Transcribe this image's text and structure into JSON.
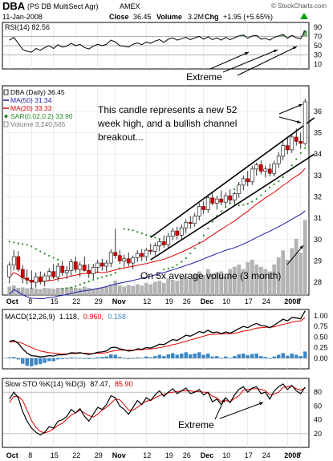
{
  "header": {
    "symbol": "DBA",
    "name": "(PS DB MultiSect  Agr)",
    "exchange": "AMEX",
    "date": "11-Jan-2008",
    "close_label": "Close",
    "close_value": "36.45",
    "volume_label": "Volume",
    "volume_value": "3.2M",
    "chg_label": "Chg",
    "chg_value": "+1.95 (+5.65%)",
    "chg_arrow": "up-arrow-icon",
    "brand": "© StockCharts.com"
  },
  "colors": {
    "up": "#00a000",
    "down": "#d00000",
    "ma50": "#1e1eaa",
    "ma20": "#e00000",
    "sar": "#228822",
    "volume": "#b4b4b4",
    "rsi_fill": "#5aa05a",
    "macd_hist": "#3a86c6",
    "signal": "#e00000",
    "price_axis": "#000000"
  },
  "rsi_panel": {
    "legend": "RSI(14) 82.56",
    "ticks": [
      "90",
      "70",
      "50",
      "30",
      "10"
    ],
    "annotation": "Extreme"
  },
  "price_panel": {
    "legend": [
      {
        "text": "DBA (Daily) 36.45",
        "color": "#000000",
        "marker": "box"
      },
      {
        "text": "MA(50) 31.34",
        "color": "#1e1eaa",
        "marker": "line"
      },
      {
        "text": "MA(20) 33.33",
        "color": "#e00000",
        "marker": "line"
      },
      {
        "text": "SAR(0.02,0.2) 33.90",
        "color": "#228822",
        "marker": "dot"
      },
      {
        "text": "Volume 3,240,565",
        "color": "#777777",
        "marker": "box"
      }
    ],
    "annotation_top_lines": [
      "This candle represents a new 52",
      "week high, and a bullish channel",
      "breakout..."
    ],
    "annotation_bottom": "On 5x average volume (3 month)"
  },
  "macd_panel": {
    "legend_prefix": "MACD(12,26,9)",
    "macd_value": "1.118,",
    "signal_value": "0.960,",
    "hist_value": "0.158",
    "ticks": [
      "1.00",
      "0.75",
      "0.50",
      "0.25",
      "0.00"
    ]
  },
  "sto_panel": {
    "legend_prefix": "Slow STO %K(14) %D(3)",
    "k_value": "87.47,",
    "d_value": "85.90",
    "ticks": [
      "80",
      "60",
      "40",
      "20"
    ],
    "annotation": "Extreme"
  },
  "chart_data": {
    "type": "candlestick",
    "title": "DBA (PS DB MultiSect Agr) AMEX",
    "x_labels": [
      "Oct",
      "8",
      "15",
      "22",
      "29",
      "Nov",
      "12",
      "19",
      "26",
      "Dec",
      "10",
      "17",
      "24",
      "2008",
      "7"
    ],
    "x_label_sessions": [
      0,
      5,
      10,
      15,
      20,
      24,
      31,
      36,
      40,
      44,
      49,
      54,
      58,
      63,
      66
    ],
    "price_axis": {
      "ticks": [
        28,
        29,
        30,
        31,
        32,
        33,
        34,
        35,
        36
      ],
      "ylim": [
        27.4,
        37.2
      ]
    },
    "candles": [
      {
        "o": 28.25,
        "h": 28.95,
        "l": 27.95,
        "c": 28.8
      },
      {
        "o": 28.8,
        "h": 29.5,
        "l": 28.55,
        "c": 29.2
      },
      {
        "o": 29.2,
        "h": 29.45,
        "l": 28.5,
        "c": 28.6
      },
      {
        "o": 28.6,
        "h": 28.8,
        "l": 27.95,
        "c": 28.2
      },
      {
        "o": 28.2,
        "h": 28.6,
        "l": 27.9,
        "c": 28.1
      },
      {
        "o": 28.1,
        "h": 28.55,
        "l": 27.7,
        "c": 28.0
      },
      {
        "o": 28.0,
        "h": 28.45,
        "l": 27.75,
        "c": 28.25
      },
      {
        "o": 28.25,
        "h": 28.5,
        "l": 27.9,
        "c": 28.05
      },
      {
        "o": 28.05,
        "h": 28.45,
        "l": 27.8,
        "c": 28.3
      },
      {
        "o": 28.3,
        "h": 28.65,
        "l": 28.05,
        "c": 28.5
      },
      {
        "o": 28.5,
        "h": 28.85,
        "l": 28.15,
        "c": 28.25
      },
      {
        "o": 28.25,
        "h": 28.9,
        "l": 28.05,
        "c": 28.75
      },
      {
        "o": 28.75,
        "h": 29.0,
        "l": 28.3,
        "c": 28.45
      },
      {
        "o": 28.45,
        "h": 28.75,
        "l": 28.15,
        "c": 28.55
      },
      {
        "o": 28.55,
        "h": 29.1,
        "l": 28.3,
        "c": 28.95
      },
      {
        "o": 28.95,
        "h": 29.2,
        "l": 28.45,
        "c": 28.6
      },
      {
        "o": 28.6,
        "h": 28.95,
        "l": 28.25,
        "c": 28.8
      },
      {
        "o": 28.8,
        "h": 29.2,
        "l": 28.5,
        "c": 28.55
      },
      {
        "o": 28.55,
        "h": 28.85,
        "l": 28.2,
        "c": 28.4
      },
      {
        "o": 28.4,
        "h": 28.85,
        "l": 28.15,
        "c": 28.7
      },
      {
        "o": 28.7,
        "h": 29.05,
        "l": 28.45,
        "c": 28.9
      },
      {
        "o": 28.9,
        "h": 29.1,
        "l": 28.55,
        "c": 28.75
      },
      {
        "o": 28.75,
        "h": 29.05,
        "l": 28.5,
        "c": 28.9
      },
      {
        "o": 28.9,
        "h": 29.55,
        "l": 28.7,
        "c": 29.4
      },
      {
        "o": 29.4,
        "h": 30.5,
        "l": 29.1,
        "c": 29.25
      },
      {
        "o": 29.25,
        "h": 29.5,
        "l": 28.85,
        "c": 29.0
      },
      {
        "o": 29.0,
        "h": 29.3,
        "l": 28.7,
        "c": 29.1
      },
      {
        "o": 29.1,
        "h": 29.4,
        "l": 28.75,
        "c": 28.9
      },
      {
        "o": 28.9,
        "h": 29.25,
        "l": 28.6,
        "c": 29.15
      },
      {
        "o": 29.15,
        "h": 29.5,
        "l": 28.95,
        "c": 29.35
      },
      {
        "o": 29.35,
        "h": 29.55,
        "l": 29.0,
        "c": 29.2
      },
      {
        "o": 29.2,
        "h": 29.6,
        "l": 29.0,
        "c": 29.5
      },
      {
        "o": 29.5,
        "h": 29.8,
        "l": 29.3,
        "c": 29.45
      },
      {
        "o": 29.45,
        "h": 29.85,
        "l": 29.25,
        "c": 29.7
      },
      {
        "o": 29.7,
        "h": 30.0,
        "l": 29.45,
        "c": 29.9
      },
      {
        "o": 29.9,
        "h": 30.2,
        "l": 29.6,
        "c": 29.75
      },
      {
        "o": 29.75,
        "h": 30.3,
        "l": 29.6,
        "c": 30.15
      },
      {
        "o": 30.15,
        "h": 30.55,
        "l": 29.95,
        "c": 30.4
      },
      {
        "o": 30.4,
        "h": 30.6,
        "l": 30.0,
        "c": 30.2
      },
      {
        "o": 30.2,
        "h": 30.7,
        "l": 30.0,
        "c": 30.55
      },
      {
        "o": 30.55,
        "h": 30.95,
        "l": 30.3,
        "c": 30.8
      },
      {
        "o": 30.8,
        "h": 31.1,
        "l": 30.5,
        "c": 30.75
      },
      {
        "o": 30.75,
        "h": 31.25,
        "l": 30.6,
        "c": 31.1
      },
      {
        "o": 31.1,
        "h": 31.7,
        "l": 30.9,
        "c": 31.55
      },
      {
        "o": 31.55,
        "h": 31.8,
        "l": 31.2,
        "c": 31.4
      },
      {
        "o": 31.4,
        "h": 32.1,
        "l": 31.25,
        "c": 31.95
      },
      {
        "o": 31.95,
        "h": 32.2,
        "l": 31.6,
        "c": 31.7
      },
      {
        "o": 31.7,
        "h": 32.05,
        "l": 31.4,
        "c": 31.9
      },
      {
        "o": 31.9,
        "h": 32.3,
        "l": 31.6,
        "c": 31.75
      },
      {
        "o": 31.75,
        "h": 32.2,
        "l": 31.55,
        "c": 32.05
      },
      {
        "o": 32.05,
        "h": 32.35,
        "l": 31.7,
        "c": 31.85
      },
      {
        "o": 31.85,
        "h": 32.25,
        "l": 31.6,
        "c": 32.15
      },
      {
        "o": 32.15,
        "h": 32.7,
        "l": 31.95,
        "c": 32.55
      },
      {
        "o": 32.55,
        "h": 33.0,
        "l": 32.3,
        "c": 32.85
      },
      {
        "o": 32.85,
        "h": 33.2,
        "l": 32.5,
        "c": 32.7
      },
      {
        "o": 32.7,
        "h": 33.45,
        "l": 32.55,
        "c": 33.3
      },
      {
        "o": 33.3,
        "h": 33.6,
        "l": 33.0,
        "c": 33.5
      },
      {
        "o": 33.5,
        "h": 33.7,
        "l": 33.05,
        "c": 33.2
      },
      {
        "o": 33.2,
        "h": 33.45,
        "l": 32.9,
        "c": 33.3
      },
      {
        "o": 33.3,
        "h": 33.55,
        "l": 32.95,
        "c": 33.1
      },
      {
        "o": 33.1,
        "h": 33.7,
        "l": 32.95,
        "c": 33.55
      },
      {
        "o": 33.55,
        "h": 34.1,
        "l": 33.35,
        "c": 33.9
      },
      {
        "o": 33.9,
        "h": 34.6,
        "l": 33.7,
        "c": 34.4
      },
      {
        "o": 34.4,
        "h": 34.75,
        "l": 34.0,
        "c": 34.2
      },
      {
        "o": 34.2,
        "h": 34.95,
        "l": 34.05,
        "c": 34.8
      },
      {
        "o": 34.8,
        "h": 35.2,
        "l": 34.4,
        "c": 34.6
      },
      {
        "o": 34.6,
        "h": 35.0,
        "l": 34.25,
        "c": 34.5
      },
      {
        "o": 34.5,
        "h": 36.6,
        "l": 34.4,
        "c": 36.45
      }
    ],
    "volume_millions": [
      0.35,
      0.4,
      0.3,
      0.32,
      0.28,
      0.3,
      0.27,
      0.25,
      0.3,
      0.28,
      0.26,
      0.3,
      0.29,
      0.31,
      0.33,
      0.3,
      0.28,
      0.35,
      0.3,
      0.27,
      0.3,
      0.32,
      0.36,
      0.45,
      0.6,
      0.4,
      0.35,
      0.42,
      0.38,
      0.45,
      0.4,
      0.5,
      0.45,
      0.55,
      0.6,
      0.5,
      0.7,
      0.65,
      0.6,
      0.75,
      0.8,
      0.7,
      0.9,
      1.0,
      0.85,
      1.1,
      0.9,
      0.95,
      1.0,
      0.8,
      1.1,
      1.2,
      1.3,
      1.1,
      1.4,
      1.5,
      1.3,
      1.2,
      1.1,
      1.0,
      1.3,
      1.6,
      1.9,
      1.5,
      2.0,
      2.4,
      1.8,
      3.2
    ],
    "volume_axis_ylim_millions": [
      0,
      8.5
    ],
    "ma20_last": 33.33,
    "ma50_last": 31.34,
    "sar_last": 33.9,
    "channel": {
      "upper": [
        {
          "session": 32,
          "price": 30.1
        },
        {
          "session": 68,
          "price": 35.7
        }
      ],
      "lower": [
        {
          "session": 32,
          "price": 29.05
        },
        {
          "session": 68,
          "price": 34.0
        }
      ]
    },
    "rsi": {
      "ylim": [
        0,
        100
      ],
      "values": [
        62,
        68,
        55,
        42,
        38,
        36,
        44,
        40,
        46,
        50,
        44,
        52,
        47,
        49,
        55,
        50,
        53,
        46,
        43,
        49,
        53,
        50,
        53,
        62,
        58,
        50,
        49,
        47,
        53,
        56,
        52,
        58,
        55,
        60,
        63,
        57,
        64,
        67,
        62,
        65,
        68,
        63,
        67,
        70,
        64,
        69,
        63,
        67,
        62,
        68,
        63,
        67,
        71,
        73,
        66,
        71,
        72,
        64,
        66,
        62,
        68,
        71,
        74,
        66,
        72,
        67,
        65,
        82.56
      ]
    },
    "macd": {
      "ylim": [
        -0.25,
        1.15
      ],
      "macd": [
        0.4,
        0.42,
        0.35,
        0.22,
        0.12,
        0.06,
        0.05,
        0.03,
        0.04,
        0.06,
        0.05,
        0.08,
        0.08,
        0.09,
        0.13,
        0.12,
        0.13,
        0.11,
        0.09,
        0.11,
        0.14,
        0.15,
        0.17,
        0.25,
        0.26,
        0.22,
        0.2,
        0.17,
        0.18,
        0.22,
        0.21,
        0.25,
        0.24,
        0.28,
        0.33,
        0.32,
        0.38,
        0.44,
        0.42,
        0.48,
        0.54,
        0.52,
        0.57,
        0.63,
        0.6,
        0.66,
        0.6,
        0.62,
        0.58,
        0.62,
        0.59,
        0.64,
        0.7,
        0.75,
        0.72,
        0.78,
        0.82,
        0.77,
        0.76,
        0.72,
        0.78,
        0.85,
        0.92,
        0.88,
        0.96,
        0.95,
        0.93,
        1.118
      ],
      "signal": [
        0.38,
        0.39,
        0.38,
        0.35,
        0.3,
        0.25,
        0.21,
        0.17,
        0.15,
        0.13,
        0.12,
        0.11,
        0.1,
        0.1,
        0.11,
        0.11,
        0.12,
        0.12,
        0.11,
        0.11,
        0.12,
        0.12,
        0.13,
        0.16,
        0.18,
        0.19,
        0.19,
        0.19,
        0.19,
        0.2,
        0.2,
        0.21,
        0.22,
        0.23,
        0.25,
        0.27,
        0.29,
        0.32,
        0.34,
        0.37,
        0.4,
        0.43,
        0.46,
        0.49,
        0.52,
        0.55,
        0.56,
        0.57,
        0.57,
        0.58,
        0.58,
        0.59,
        0.61,
        0.64,
        0.65,
        0.68,
        0.71,
        0.72,
        0.73,
        0.73,
        0.74,
        0.77,
        0.8,
        0.82,
        0.85,
        0.87,
        0.88,
        0.96
      ],
      "hist_label": "0.158"
    },
    "stochastic": {
      "ylim": [
        0,
        100
      ],
      "k": [
        70,
        80,
        72,
        52,
        38,
        28,
        22,
        18,
        22,
        30,
        28,
        38,
        40,
        45,
        55,
        50,
        56,
        45,
        38,
        48,
        58,
        55,
        62,
        75,
        72,
        60,
        55,
        48,
        58,
        68,
        62,
        72,
        68,
        76,
        82,
        74,
        80,
        85,
        78,
        82,
        86,
        78,
        80,
        84,
        76,
        80,
        66,
        70,
        62,
        72,
        65,
        76,
        84,
        88,
        80,
        86,
        88,
        78,
        80,
        70,
        82,
        88,
        92,
        84,
        90,
        82,
        78,
        87.47
      ],
      "d": [
        65,
        74,
        74,
        68,
        54,
        39,
        29,
        23,
        21,
        23,
        27,
        32,
        35,
        41,
        47,
        50,
        54,
        50,
        46,
        44,
        48,
        54,
        58,
        64,
        70,
        69,
        62,
        54,
        54,
        58,
        63,
        67,
        68,
        72,
        75,
        77,
        79,
        80,
        81,
        82,
        82,
        82,
        81,
        81,
        80,
        80,
        74,
        72,
        66,
        68,
        66,
        71,
        75,
        83,
        84,
        85,
        85,
        84,
        82,
        76,
        77,
        80,
        87,
        88,
        89,
        85,
        83,
        85.9
      ]
    }
  }
}
